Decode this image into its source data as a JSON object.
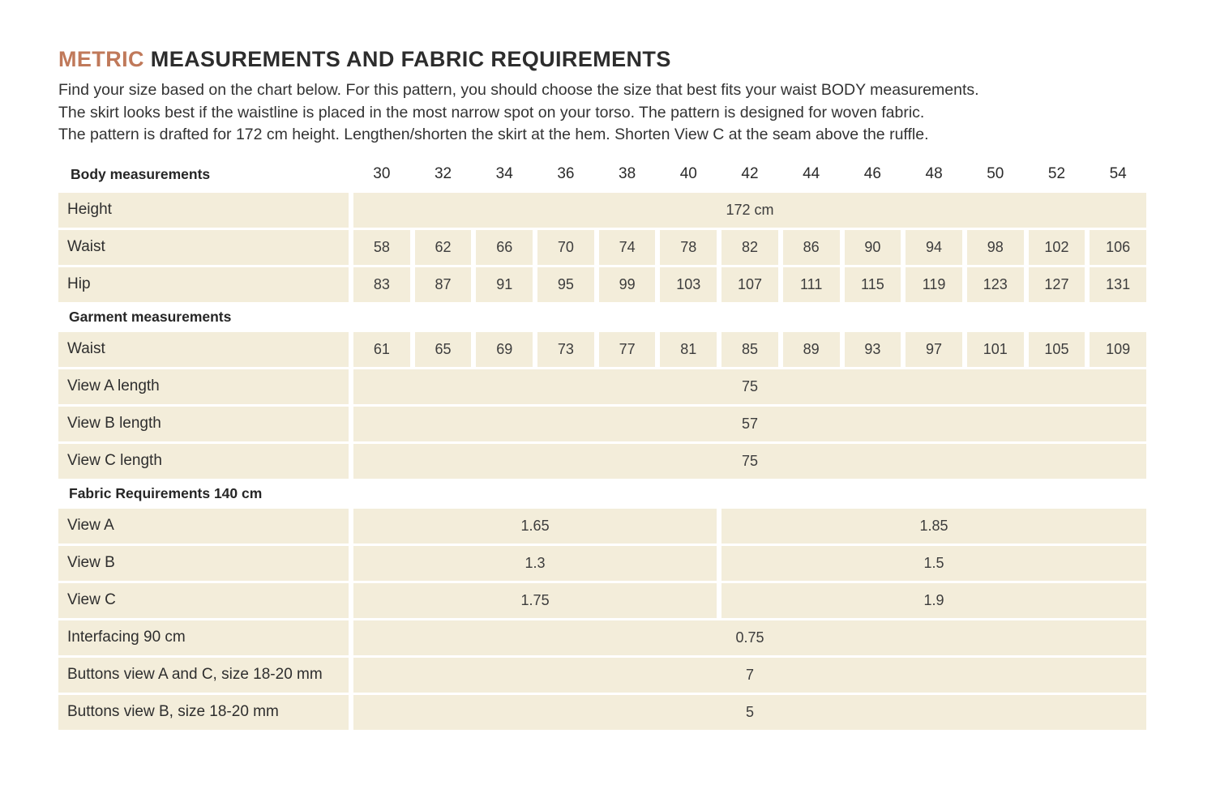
{
  "page": {
    "title_accent": "METRIC",
    "title_rest": " MEASUREMENTS AND FABRIC REQUIREMENTS",
    "intro_lines": [
      "Find your size based on the chart below. For this pattern, you should choose the size that best fits your waist BODY measurements.",
      "The skirt looks best if the waistline is placed in the most narrow spot on your torso. The pattern is designed for woven fabric.",
      "The pattern is drafted for 172 cm height. Lengthen/shorten the skirt at the hem. Shorten View C at the seam above the ruffle."
    ]
  },
  "colors": {
    "accent": "#c0795a",
    "cell_background": "#f3edda",
    "text": "#2e2e2e"
  },
  "table": {
    "header": {
      "label": "Body measurements",
      "sizes": [
        "30",
        "32",
        "34",
        "36",
        "38",
        "40",
        "42",
        "44",
        "46",
        "48",
        "50",
        "52",
        "54"
      ]
    },
    "rows": [
      {
        "type": "span",
        "label": "Height",
        "value": "172 cm"
      },
      {
        "type": "cells",
        "label": "Waist",
        "values": [
          "58",
          "62",
          "66",
          "70",
          "74",
          "78",
          "82",
          "86",
          "90",
          "94",
          "98",
          "102",
          "106"
        ]
      },
      {
        "type": "cells",
        "label": "Hip",
        "values": [
          "83",
          "87",
          "91",
          "95",
          "99",
          "103",
          "107",
          "111",
          "115",
          "119",
          "123",
          "127",
          "131"
        ]
      },
      {
        "type": "section",
        "label": "Garment measurements"
      },
      {
        "type": "cells",
        "label": "Waist",
        "values": [
          "61",
          "65",
          "69",
          "73",
          "77",
          "81",
          "85",
          "89",
          "93",
          "97",
          "101",
          "105",
          "109"
        ]
      },
      {
        "type": "span",
        "label": "View A length",
        "value": "75"
      },
      {
        "type": "span",
        "label": "View B length",
        "value": "57"
      },
      {
        "type": "span",
        "label": "View C length",
        "value": "75"
      },
      {
        "type": "section",
        "label": "Fabric Requirements 140 cm"
      },
      {
        "type": "half",
        "label": "View A",
        "left": "1.65",
        "right": "1.85"
      },
      {
        "type": "half",
        "label": "View B",
        "left": "1.3",
        "right": "1.5"
      },
      {
        "type": "half",
        "label": "View C",
        "left": "1.75",
        "right": "1.9"
      },
      {
        "type": "span",
        "label": "Interfacing 90 cm",
        "value": "0.75"
      },
      {
        "type": "span",
        "label": "Buttons view A and C, size 18-20 mm",
        "value": "7"
      },
      {
        "type": "span",
        "label": "Buttons view B, size 18-20 mm",
        "value": "5"
      }
    ]
  }
}
